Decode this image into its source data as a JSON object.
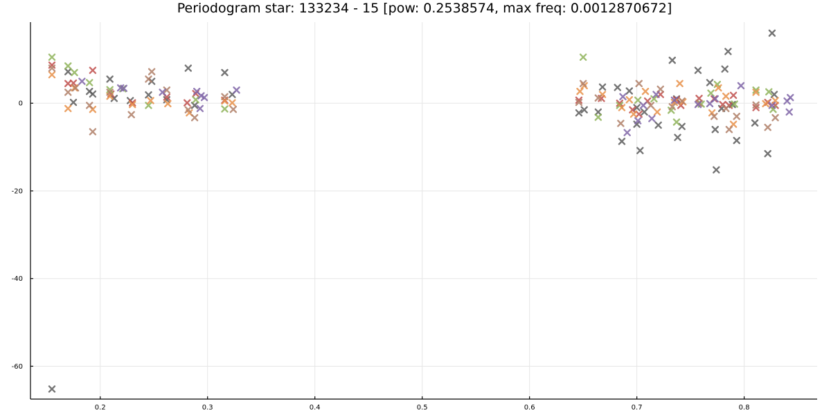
{
  "chart_data": {
    "type": "scatter",
    "title": "Periodogram star: 133234 - 15 [pow: 0.2538574, max freq: 0.0012870672]",
    "xlabel": "",
    "ylabel": "",
    "xlim": [
      0.135,
      0.868
    ],
    "ylim": [
      -67.5,
      18.5
    ],
    "x_ticks": [
      0.2,
      0.3,
      0.4,
      0.5,
      0.6,
      0.7,
      0.8
    ],
    "x_tick_labels": [
      "0.2",
      "0.3",
      "0.4",
      "0.5",
      "0.6",
      "0.7",
      "0.8"
    ],
    "y_ticks": [
      -60,
      -40,
      -20,
      0
    ],
    "y_tick_labels": [
      "-60",
      "-40",
      "-20",
      "0"
    ],
    "grid": true,
    "legend": "none",
    "marker": "x",
    "series": [
      {
        "color": "#5c5c5c",
        "points": [
          [
            0.155,
            -65.2
          ],
          [
            0.17,
            7.2
          ],
          [
            0.175,
            0.2
          ],
          [
            0.19,
            2.7
          ],
          [
            0.193,
            2.1
          ],
          [
            0.209,
            5.5
          ],
          [
            0.213,
            1.1
          ],
          [
            0.228,
            0.6
          ],
          [
            0.245,
            1.9
          ],
          [
            0.248,
            5.0
          ],
          [
            0.262,
            0.8
          ],
          [
            0.282,
            8.0
          ],
          [
            0.288,
            -0.5
          ],
          [
            0.316,
            7.0
          ],
          [
            0.323,
            2.0
          ],
          [
            0.646,
            -2.2
          ],
          [
            0.651,
            -1.5
          ],
          [
            0.664,
            -2.0
          ],
          [
            0.668,
            3.7
          ],
          [
            0.682,
            3.6
          ],
          [
            0.686,
            -8.7
          ],
          [
            0.693,
            2.8
          ],
          [
            0.7,
            -4.8
          ],
          [
            0.703,
            -10.8
          ],
          [
            0.707,
            -2.0
          ],
          [
            0.72,
            -5.0
          ],
          [
            0.733,
            9.8
          ],
          [
            0.737,
            1.0
          ],
          [
            0.738,
            -7.8
          ],
          [
            0.742,
            -5.3
          ],
          [
            0.757,
            7.5
          ],
          [
            0.768,
            4.7
          ],
          [
            0.773,
            -6.0
          ],
          [
            0.774,
            -15.2
          ],
          [
            0.779,
            -1.2
          ],
          [
            0.782,
            7.8
          ],
          [
            0.785,
            11.8
          ],
          [
            0.793,
            -8.5
          ],
          [
            0.81,
            -4.5
          ],
          [
            0.822,
            -11.5
          ],
          [
            0.826,
            16.0
          ],
          [
            0.828,
            2.0
          ],
          [
            0.7,
            -1.0
          ],
          [
            0.789,
            -0.3
          ]
        ]
      },
      {
        "color": "#c0504d",
        "points": [
          [
            0.155,
            8.7
          ],
          [
            0.17,
            4.5
          ],
          [
            0.175,
            4.6
          ],
          [
            0.193,
            7.5
          ],
          [
            0.21,
            2.1
          ],
          [
            0.23,
            0.1
          ],
          [
            0.262,
            1.4
          ],
          [
            0.281,
            0.1
          ],
          [
            0.289,
            2.2
          ],
          [
            0.316,
            0.7
          ],
          [
            0.646,
            0.7
          ],
          [
            0.667,
            1.1
          ],
          [
            0.684,
            0.0
          ],
          [
            0.696,
            -1.5
          ],
          [
            0.702,
            -2.5
          ],
          [
            0.71,
            0.5
          ],
          [
            0.722,
            2.0
          ],
          [
            0.737,
            0.8
          ],
          [
            0.741,
            -0.5
          ],
          [
            0.758,
            1.1
          ],
          [
            0.772,
            1.0
          ],
          [
            0.78,
            -0.3
          ],
          [
            0.786,
            -0.5
          ],
          [
            0.79,
            1.8
          ],
          [
            0.811,
            -1.0
          ],
          [
            0.822,
            0.2
          ],
          [
            0.829,
            -0.5
          ]
        ]
      },
      {
        "color": "#8fb35a",
        "points": [
          [
            0.155,
            10.5
          ],
          [
            0.17,
            8.5
          ],
          [
            0.176,
            7.0
          ],
          [
            0.19,
            4.7
          ],
          [
            0.209,
            3.1
          ],
          [
            0.221,
            3.3
          ],
          [
            0.245,
            -0.5
          ],
          [
            0.289,
            0.8
          ],
          [
            0.316,
            -1.3
          ],
          [
            0.65,
            10.5
          ],
          [
            0.664,
            -3.2
          ],
          [
            0.684,
            -0.5
          ],
          [
            0.701,
            0.7
          ],
          [
            0.716,
            1.0
          ],
          [
            0.732,
            -1.6
          ],
          [
            0.737,
            -4.3
          ],
          [
            0.76,
            -0.2
          ],
          [
            0.769,
            2.3
          ],
          [
            0.775,
            4.3
          ],
          [
            0.791,
            -0.2
          ],
          [
            0.811,
            3.0
          ],
          [
            0.823,
            2.6
          ],
          [
            0.827,
            -1.4
          ]
        ]
      },
      {
        "color": "#e8914a",
        "points": [
          [
            0.155,
            6.5
          ],
          [
            0.17,
            -1.2
          ],
          [
            0.176,
            3.5
          ],
          [
            0.193,
            -1.4
          ],
          [
            0.209,
            1.6
          ],
          [
            0.23,
            -0.3
          ],
          [
            0.247,
            0.6
          ],
          [
            0.263,
            -0.1
          ],
          [
            0.283,
            -2.2
          ],
          [
            0.316,
            0.5
          ],
          [
            0.323,
            0.1
          ],
          [
            0.647,
            2.7
          ],
          [
            0.651,
            4.0
          ],
          [
            0.668,
            2.0
          ],
          [
            0.686,
            -1.0
          ],
          [
            0.693,
            0.8
          ],
          [
            0.697,
            -2.5
          ],
          [
            0.708,
            2.7
          ],
          [
            0.719,
            -2.0
          ],
          [
            0.735,
            0.2
          ],
          [
            0.74,
            4.5
          ],
          [
            0.743,
            0.3
          ],
          [
            0.77,
            -2.2
          ],
          [
            0.776,
            3.5
          ],
          [
            0.783,
            1.6
          ],
          [
            0.79,
            -4.8
          ],
          [
            0.811,
            2.5
          ],
          [
            0.82,
            -0.1
          ],
          [
            0.829,
            0.6
          ]
        ]
      },
      {
        "color": "#b07f68",
        "points": [
          [
            0.155,
            8.0
          ],
          [
            0.17,
            2.5
          ],
          [
            0.177,
            3.5
          ],
          [
            0.19,
            -0.5
          ],
          [
            0.193,
            -6.5
          ],
          [
            0.209,
            2.5
          ],
          [
            0.229,
            -2.6
          ],
          [
            0.245,
            5.5
          ],
          [
            0.248,
            7.2
          ],
          [
            0.262,
            3.0
          ],
          [
            0.282,
            -1.5
          ],
          [
            0.288,
            -3.3
          ],
          [
            0.316,
            1.5
          ],
          [
            0.324,
            -1.4
          ],
          [
            0.646,
            0.2
          ],
          [
            0.65,
            4.5
          ],
          [
            0.664,
            1.2
          ],
          [
            0.685,
            -4.6
          ],
          [
            0.702,
            4.5
          ],
          [
            0.713,
            -0.5
          ],
          [
            0.722,
            3.2
          ],
          [
            0.733,
            -0.8
          ],
          [
            0.742,
            0.5
          ],
          [
            0.758,
            0.0
          ],
          [
            0.772,
            -3.0
          ],
          [
            0.783,
            -1.2
          ],
          [
            0.786,
            -6.0
          ],
          [
            0.793,
            -3.0
          ],
          [
            0.811,
            -0.4
          ],
          [
            0.822,
            -5.5
          ],
          [
            0.829,
            -3.3
          ]
        ]
      },
      {
        "color": "#8066a8",
        "points": [
          [
            0.183,
            5.0
          ],
          [
            0.219,
            3.5
          ],
          [
            0.222,
            3.4
          ],
          [
            0.258,
            2.5
          ],
          [
            0.29,
            2.7
          ],
          [
            0.293,
            -1.2
          ],
          [
            0.294,
            1.7
          ],
          [
            0.297,
            1.3
          ],
          [
            0.327,
            3.0
          ],
          [
            0.687,
            1.5
          ],
          [
            0.691,
            -6.7
          ],
          [
            0.701,
            -4.0
          ],
          [
            0.706,
            -0.5
          ],
          [
            0.714,
            -3.5
          ],
          [
            0.718,
            2.0
          ],
          [
            0.735,
            0.7
          ],
          [
            0.757,
            -0.3
          ],
          [
            0.768,
            -0.1
          ],
          [
            0.773,
            1.0
          ],
          [
            0.797,
            4.0
          ],
          [
            0.826,
            -0.5
          ],
          [
            0.84,
            0.5
          ],
          [
            0.842,
            -2.0
          ],
          [
            0.843,
            1.3
          ]
        ]
      }
    ]
  }
}
